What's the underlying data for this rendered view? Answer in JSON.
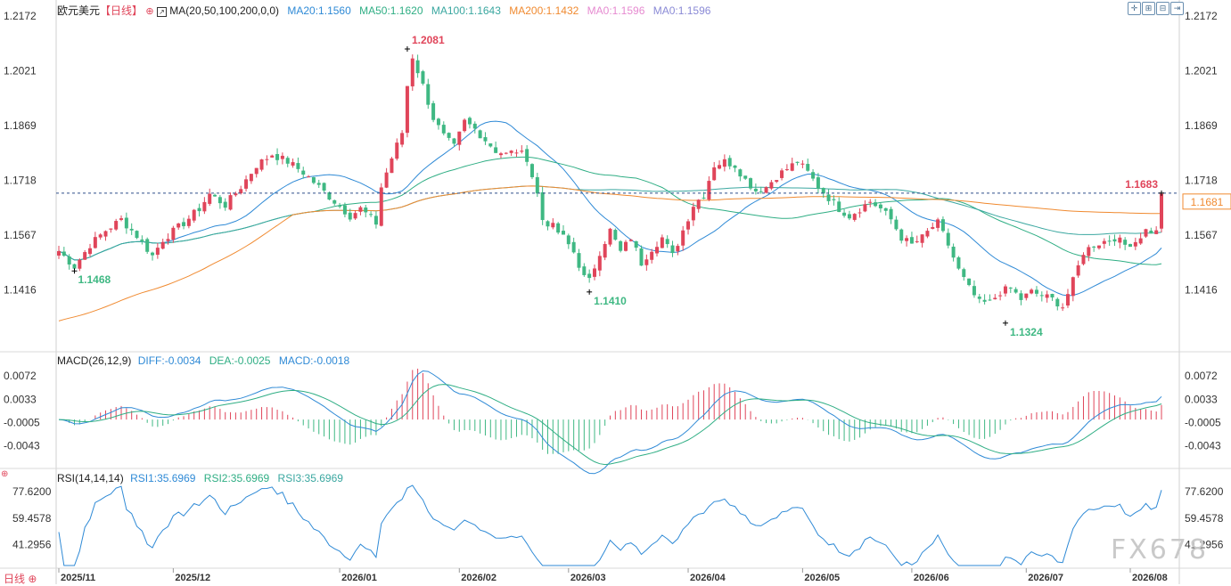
{
  "header": {
    "symbol": "欧元美元",
    "period": "【日线】",
    "ma_title": "MA(20,50,100,200,0,0)",
    "ma20": "MA20:1.1560",
    "ma50": "MA50:1.1620",
    "ma100": "MA100:1.1643",
    "ma200": "MA200:1.1432",
    "ma0a": "MA0:1.1596",
    "ma0b": "MA0:1.1596"
  },
  "macd_header": {
    "title": "MACD(26,12,9)",
    "diff": "DIFF:-0.0034",
    "dea": "DEA:-0.0025",
    "macd": "MACD:-0.0018"
  },
  "rsi_header": {
    "title": "RSI(14,14,14)",
    "rsi1": "RSI1:35.6969",
    "rsi2": "RSI2:35.6969",
    "rsi3": "RSI3:35.6969"
  },
  "footer": {
    "period_button": "日线",
    "watermark": "FX678"
  },
  "icons": [
    "crosshair-icon",
    "zoom-in-icon",
    "zoom-out-icon",
    "scroll-end-icon"
  ],
  "colors": {
    "up": "#e0455a",
    "down": "#3fb883",
    "ma20": "#2f8ad6",
    "ma50": "#2fae84",
    "ma100": "#3aa7a0",
    "ma200": "#f08a30",
    "diff": "#2f8ad6",
    "dea": "#2fae84",
    "rsi": "#2f8ad6"
  },
  "chart_data": [
    {
      "type": "candlestick",
      "title": "欧元美元 日线",
      "price_axis_ticks": [
        "1.2172",
        "1.2021",
        "1.1869",
        "1.1718",
        "1.1567",
        "1.1416"
      ],
      "ylim": [
        1.1262,
        1.2172
      ],
      "x_tick_labels": [
        "2025/11",
        "2025/12",
        "2026/01",
        "2026/02",
        "2026/03",
        "2026/04",
        "2026/05",
        "2026/06",
        "2026/07",
        "2026/08"
      ],
      "annotations": [
        {
          "label": "1.1468",
          "value": 1.1468,
          "type": "low"
        },
        {
          "label": "1.2081",
          "value": 1.2081,
          "type": "high"
        },
        {
          "label": "1.1410",
          "value": 1.141,
          "type": "low"
        },
        {
          "label": "1.1324",
          "value": 1.1324,
          "type": "low"
        },
        {
          "label": "1.1683",
          "value": 1.1683,
          "type": "high"
        }
      ],
      "last_price": "1.1681",
      "close_path": [
        [
          0,
          1.1523
        ],
        [
          3,
          1.148
        ],
        [
          6,
          1.154
        ],
        [
          9,
          1.158
        ],
        [
          12,
          1.161
        ],
        [
          15,
          1.1565
        ],
        [
          18,
          1.151
        ],
        [
          20,
          1.1555
        ],
        [
          24,
          1.16
        ],
        [
          27,
          1.164
        ],
        [
          29,
          1.168
        ],
        [
          32,
          1.165
        ],
        [
          35,
          1.17
        ],
        [
          38,
          1.176
        ],
        [
          41,
          1.179
        ],
        [
          44,
          1.177
        ],
        [
          47,
          1.174
        ],
        [
          50,
          1.17
        ],
        [
          53,
          1.166
        ],
        [
          56,
          1.162
        ],
        [
          58,
          1.164
        ],
        [
          61,
          1.16
        ],
        [
          62,
          1.17
        ],
        [
          64,
          1.178
        ],
        [
          66,
          1.185
        ],
        [
          67,
          1.198
        ],
        [
          68,
          1.206
        ],
        [
          70,
          1.198
        ],
        [
          72,
          1.189
        ],
        [
          74,
          1.184
        ],
        [
          76,
          1.181
        ],
        [
          78,
          1.188
        ],
        [
          80,
          1.186
        ],
        [
          82,
          1.183
        ],
        [
          84,
          1.18
        ],
        [
          86,
          1.179
        ],
        [
          88,
          1.18
        ],
        [
          90,
          1.178
        ],
        [
          92,
          1.168
        ],
        [
          93,
          1.161
        ],
        [
          95,
          1.159
        ],
        [
          97,
          1.156
        ],
        [
          99,
          1.152
        ],
        [
          101,
          1.145
        ],
        [
          102,
          1.144
        ],
        [
          104,
          1.152
        ],
        [
          106,
          1.158
        ],
        [
          108,
          1.152
        ],
        [
          110,
          1.156
        ],
        [
          112,
          1.149
        ],
        [
          114,
          1.153
        ],
        [
          116,
          1.156
        ],
        [
          118,
          1.151
        ],
        [
          120,
          1.158
        ],
        [
          122,
          1.165
        ],
        [
          124,
          1.168
        ],
        [
          126,
          1.176
        ],
        [
          128,
          1.177
        ],
        [
          130,
          1.176
        ],
        [
          132,
          1.172
        ],
        [
          134,
          1.169
        ],
        [
          136,
          1.17
        ],
        [
          138,
          1.173
        ],
        [
          140,
          1.175
        ],
        [
          142,
          1.177
        ],
        [
          144,
          1.174
        ],
        [
          146,
          1.17
        ],
        [
          148,
          1.167
        ],
        [
          150,
          1.164
        ],
        [
          152,
          1.162
        ],
        [
          154,
          1.164
        ],
        [
          156,
          1.166
        ],
        [
          158,
          1.164
        ],
        [
          160,
          1.161
        ],
        [
          162,
          1.156
        ],
        [
          164,
          1.154
        ],
        [
          166,
          1.156
        ],
        [
          168,
          1.159
        ],
        [
          169,
          1.16
        ],
        [
          171,
          1.154
        ],
        [
          173,
          1.147
        ],
        [
          175,
          1.142
        ],
        [
          177,
          1.138
        ],
        [
          179,
          1.138
        ],
        [
          181,
          1.141
        ],
        [
          183,
          1.142
        ],
        [
          185,
          1.139
        ],
        [
          187,
          1.141
        ],
        [
          189,
          1.14
        ],
        [
          191,
          1.139
        ],
        [
          193,
          1.137
        ],
        [
          195,
          1.144
        ],
        [
          197,
          1.152
        ],
        [
          199,
          1.154
        ],
        [
          201,
          1.155
        ],
        [
          203,
          1.156
        ],
        [
          205,
          1.154
        ],
        [
          207,
          1.155
        ],
        [
          209,
          1.158
        ],
        [
          211,
          1.1575
        ],
        [
          212,
          1.1681
        ]
      ],
      "series": [
        {
          "name": "MA20",
          "current": 1.156
        },
        {
          "name": "MA50",
          "current": 1.162
        },
        {
          "name": "MA100",
          "current": 1.1643
        },
        {
          "name": "MA200",
          "current": 1.1432
        }
      ]
    },
    {
      "type": "bar+line",
      "title": "MACD(26,12,9)",
      "axis_ticks": [
        "0.0072",
        "0.0033",
        "-0.0005",
        "-0.0043"
      ],
      "ylim": [
        -0.0075,
        0.009
      ],
      "series": [
        {
          "name": "DIFF",
          "current": -0.0034
        },
        {
          "name": "DEA",
          "current": -0.0025
        },
        {
          "name": "MACD",
          "current": -0.0018
        }
      ]
    },
    {
      "type": "line",
      "title": "RSI(14,14,14)",
      "axis_ticks": [
        "77.6200",
        "59.4578",
        "41.2956"
      ],
      "ylim": [
        27,
        82
      ],
      "series": [
        {
          "name": "RSI1",
          "current": 35.6969
        }
      ]
    }
  ]
}
